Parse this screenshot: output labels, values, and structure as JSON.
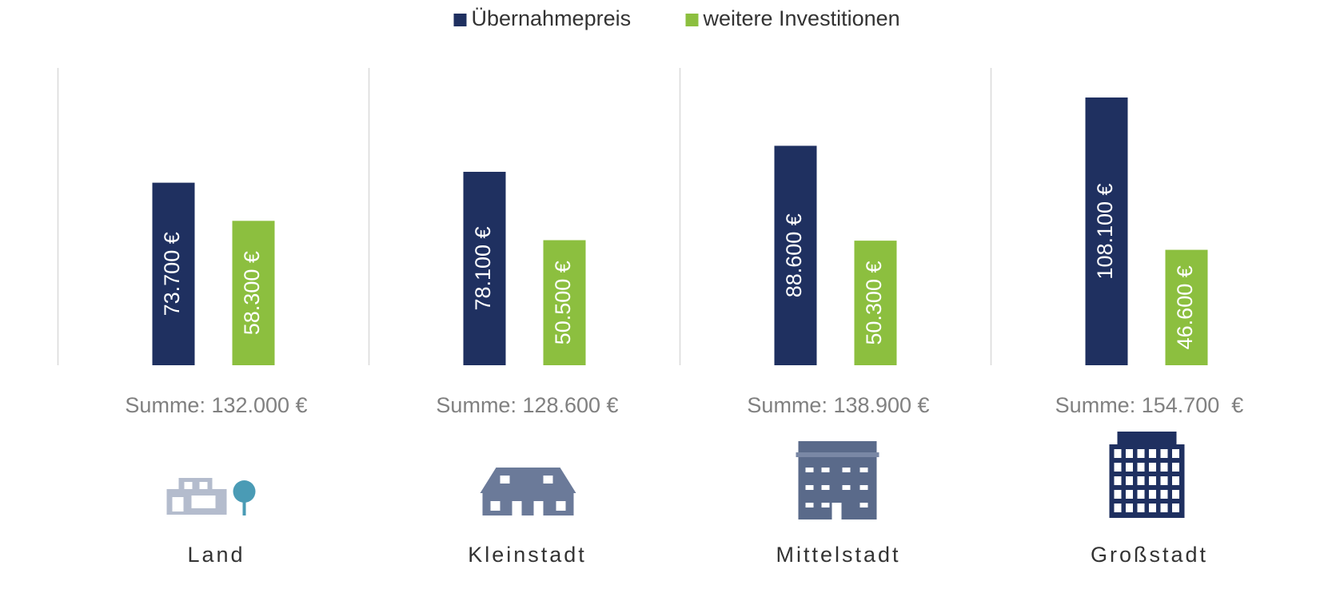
{
  "chart_data": {
    "type": "bar",
    "categories": [
      "Land",
      "Kleinstadt",
      "Mittelstadt",
      "Großstadt"
    ],
    "series": [
      {
        "name": "Übernahmepreis",
        "color": "#1f3060",
        "values": [
          73700,
          78100,
          88600,
          108100
        ],
        "value_labels": [
          "73.700 €",
          "78.100 €",
          "88.600 €",
          "108.100 €"
        ]
      },
      {
        "name": "weitere Investitionen",
        "color": "#8cbf3f",
        "values": [
          58300,
          50500,
          50300,
          46600
        ],
        "value_labels": [
          "58.300 €",
          "50.500 €",
          "50.300 €",
          "46.600 €"
        ]
      }
    ],
    "annotations": [
      "Summe: 132.000 €",
      "Summe: 128.600 €",
      "Summe: 138.900 €",
      "Summe: 154.700  €"
    ],
    "legend": "top"
  }
}
